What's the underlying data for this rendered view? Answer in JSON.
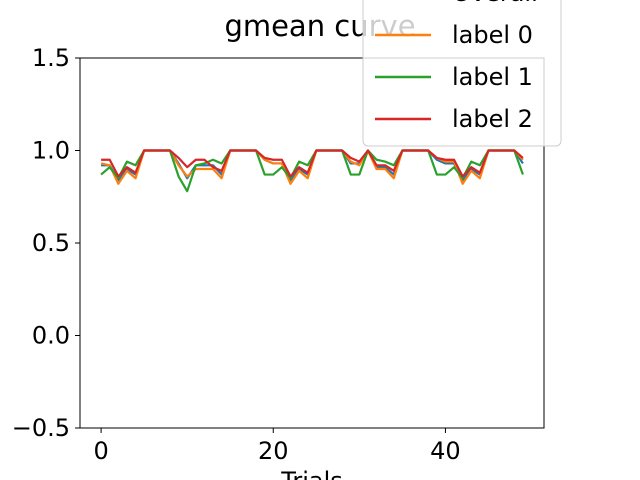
{
  "chart_data": {
    "type": "line",
    "title": "gmean curve",
    "xlabel": "Trials",
    "ylabel": "",
    "xlim": [
      -2.45,
      51.45
    ],
    "ylim": [
      -0.5,
      1.5
    ],
    "xticks": [
      0,
      20,
      40
    ],
    "yticks": [
      -0.5,
      0.0,
      0.5,
      1.0,
      1.5
    ],
    "xtick_labels": [
      "0",
      "20",
      "40"
    ],
    "ytick_labels": [
      "−0.5",
      "0.0",
      "0.5",
      "1.0",
      "1.5"
    ],
    "grid": false,
    "legend_position": "top-right",
    "x": [
      0,
      1,
      2,
      3,
      4,
      5,
      6,
      7,
      8,
      9,
      10,
      11,
      12,
      13,
      14,
      15,
      16,
      17,
      18,
      19,
      20,
      21,
      22,
      23,
      24,
      25,
      26,
      27,
      28,
      29,
      30,
      31,
      32,
      33,
      34,
      35,
      36,
      37,
      38,
      39,
      40,
      41,
      42,
      43,
      44,
      45,
      46,
      47,
      48,
      49
    ],
    "series": [
      {
        "name": "Overall",
        "color": "#1f77b4",
        "values": [
          0.92,
          0.92,
          0.84,
          0.9,
          0.87,
          1.0,
          1.0,
          1.0,
          1.0,
          0.93,
          0.85,
          0.92,
          0.92,
          0.92,
          0.87,
          1.0,
          1.0,
          1.0,
          1.0,
          0.95,
          0.93,
          0.93,
          0.84,
          0.9,
          0.87,
          1.0,
          1.0,
          1.0,
          1.0,
          0.93,
          0.93,
          1.0,
          0.91,
          0.91,
          0.87,
          1.0,
          1.0,
          1.0,
          1.0,
          0.95,
          0.93,
          0.93,
          0.84,
          0.9,
          0.87,
          1.0,
          1.0,
          1.0,
          1.0,
          0.93
        ]
      },
      {
        "name": "label 0",
        "color": "#ff7f0e",
        "values": [
          0.93,
          0.92,
          0.82,
          0.89,
          0.85,
          1.0,
          1.0,
          1.0,
          1.0,
          0.92,
          0.86,
          0.9,
          0.9,
          0.9,
          0.85,
          1.0,
          1.0,
          1.0,
          1.0,
          0.95,
          0.93,
          0.93,
          0.82,
          0.89,
          0.85,
          1.0,
          1.0,
          1.0,
          1.0,
          0.94,
          0.92,
          1.0,
          0.9,
          0.9,
          0.85,
          1.0,
          1.0,
          1.0,
          1.0,
          0.96,
          0.94,
          0.94,
          0.82,
          0.89,
          0.85,
          1.0,
          1.0,
          1.0,
          1.0,
          0.95
        ]
      },
      {
        "name": "label 1",
        "color": "#2ca02c",
        "values": [
          0.87,
          0.91,
          0.85,
          0.94,
          0.92,
          1.0,
          1.0,
          1.0,
          1.0,
          0.86,
          0.78,
          0.92,
          0.93,
          0.95,
          0.93,
          1.0,
          1.0,
          1.0,
          1.0,
          0.87,
          0.87,
          0.91,
          0.85,
          0.94,
          0.92,
          1.0,
          1.0,
          1.0,
          1.0,
          0.87,
          0.87,
          1.0,
          0.95,
          0.94,
          0.92,
          1.0,
          1.0,
          1.0,
          1.0,
          0.87,
          0.87,
          0.91,
          0.85,
          0.94,
          0.92,
          1.0,
          1.0,
          1.0,
          1.0,
          0.87
        ]
      },
      {
        "name": "label 2",
        "color": "#d62728",
        "values": [
          0.95,
          0.95,
          0.86,
          0.91,
          0.88,
          1.0,
          1.0,
          1.0,
          1.0,
          0.96,
          0.91,
          0.95,
          0.95,
          0.91,
          0.89,
          1.0,
          1.0,
          1.0,
          1.0,
          0.96,
          0.95,
          0.95,
          0.86,
          0.91,
          0.88,
          1.0,
          1.0,
          1.0,
          1.0,
          0.96,
          0.94,
          1.0,
          0.92,
          0.92,
          0.89,
          1.0,
          1.0,
          1.0,
          1.0,
          0.96,
          0.95,
          0.95,
          0.86,
          0.91,
          0.88,
          1.0,
          1.0,
          1.0,
          1.0,
          0.96
        ]
      }
    ]
  }
}
